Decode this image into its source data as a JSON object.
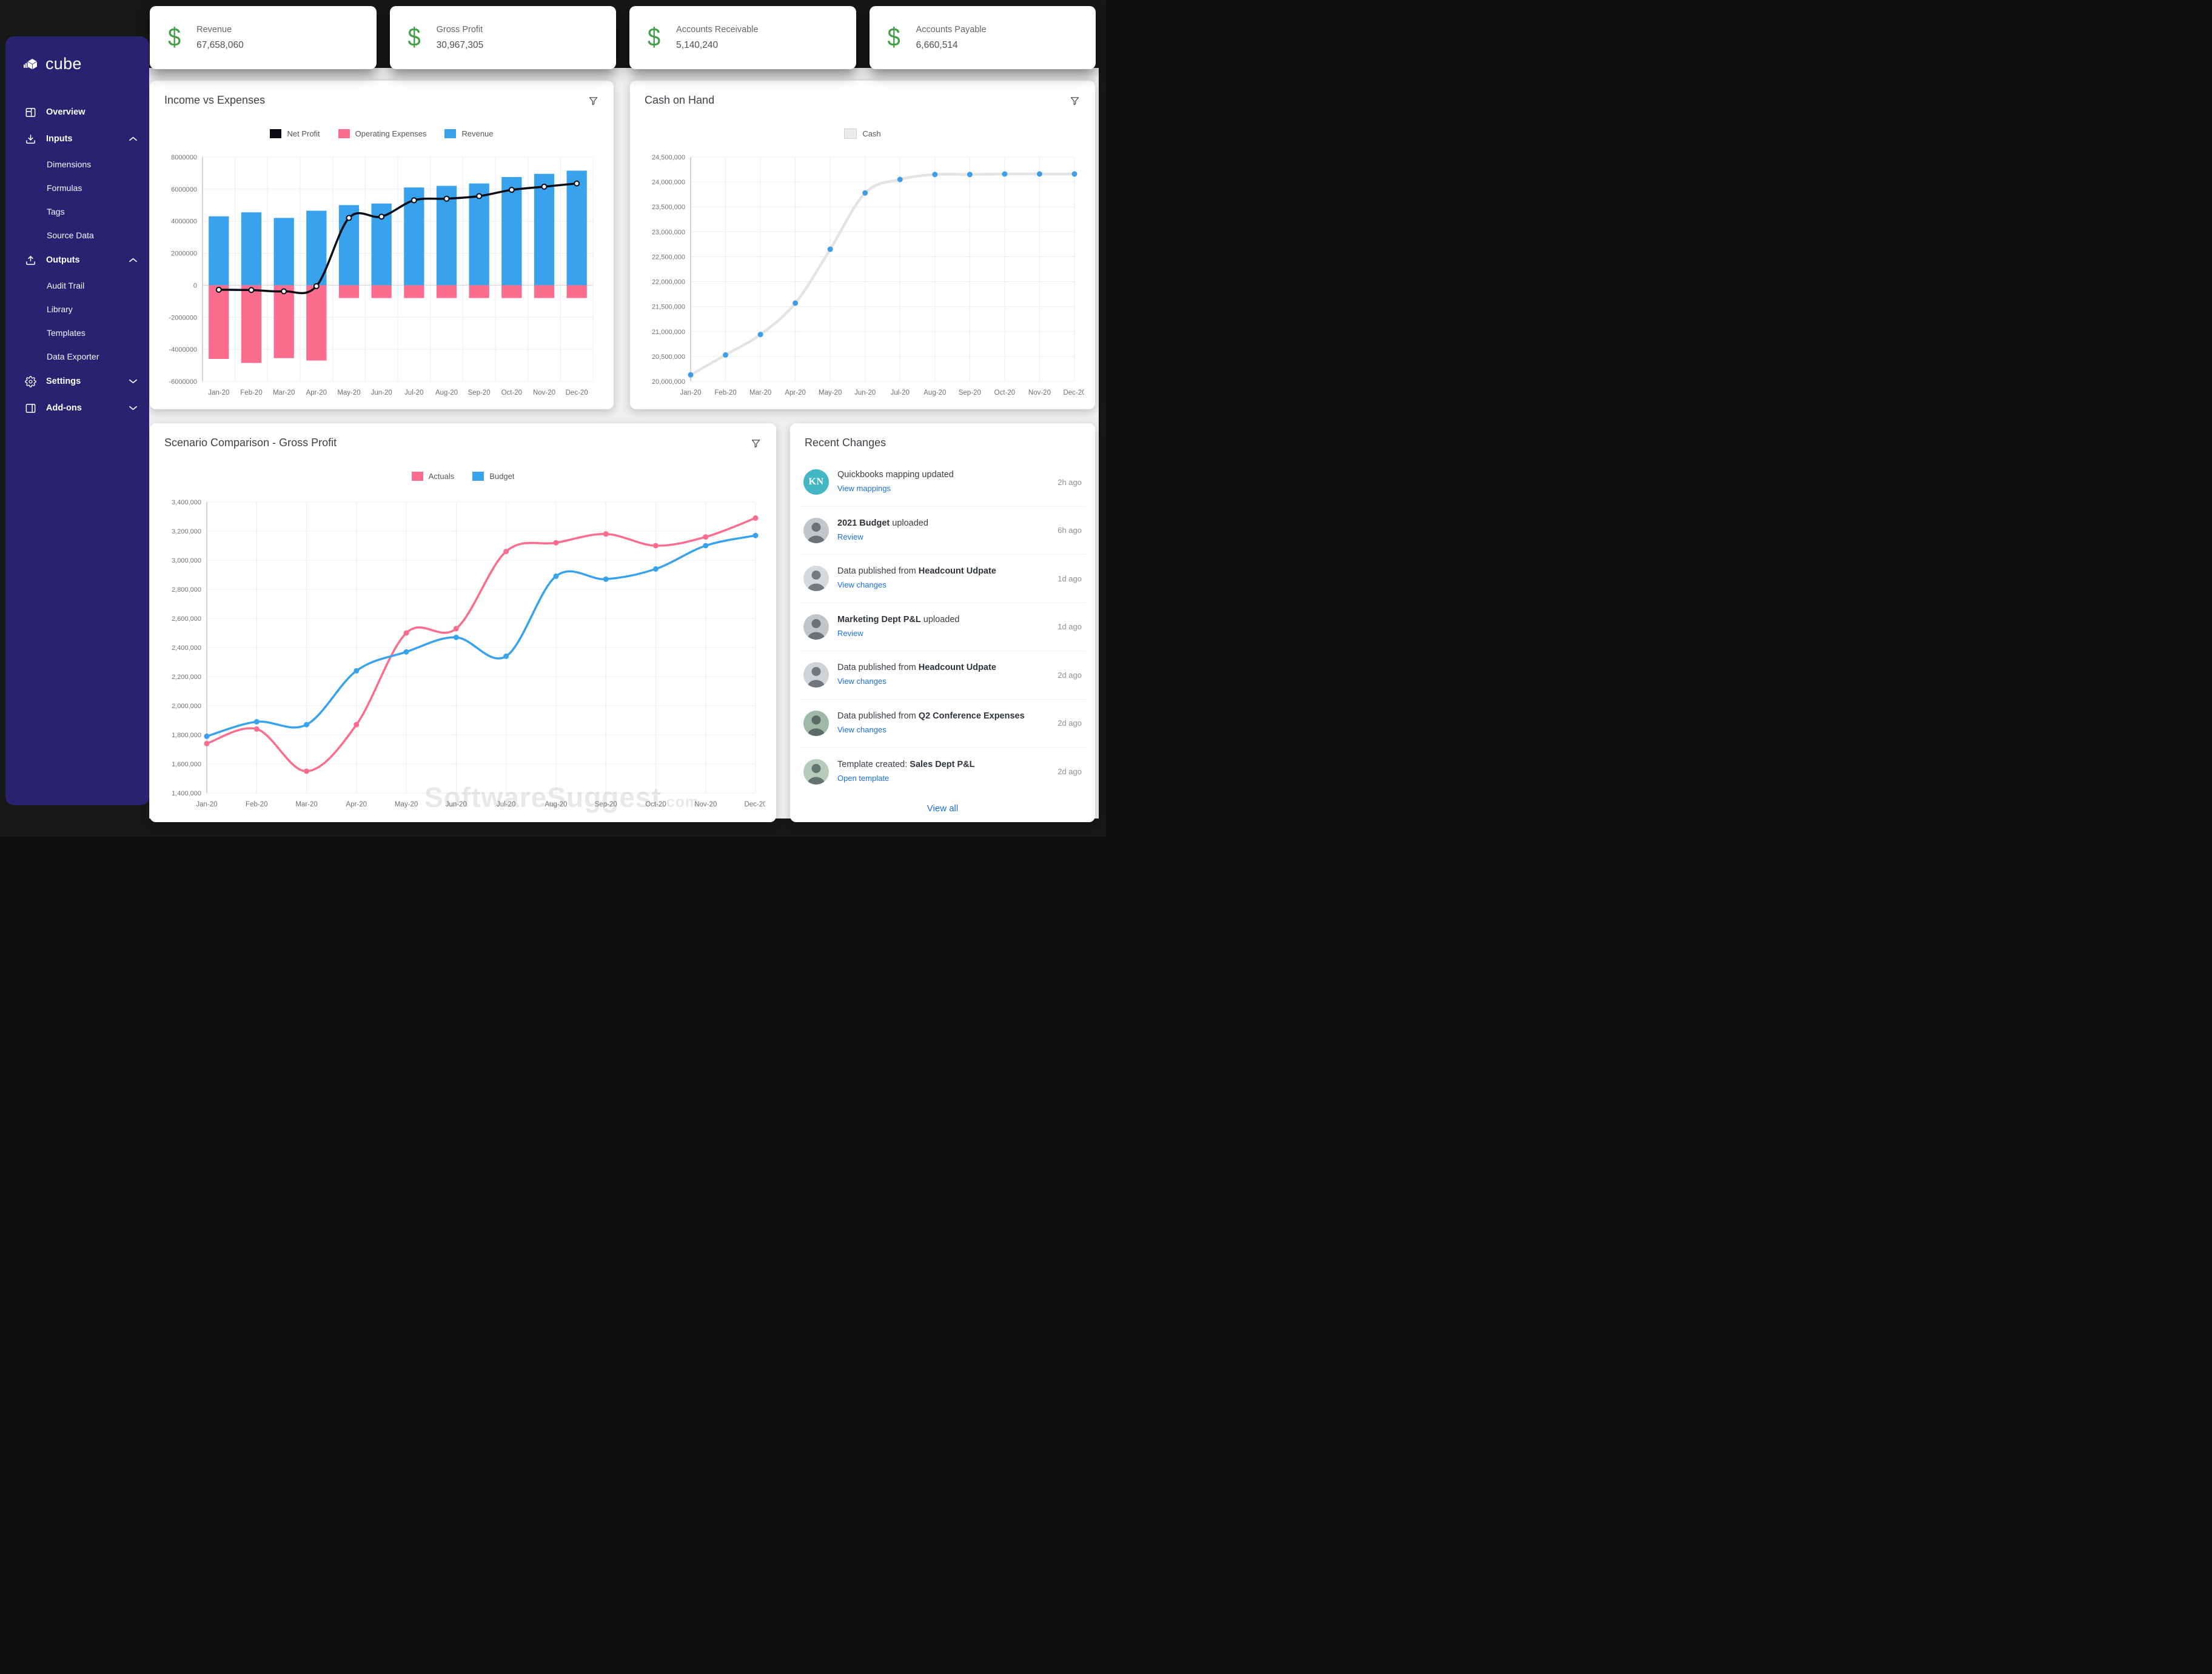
{
  "watermark": {
    "text": "SoftwareSuggest",
    "suffix": ".com"
  },
  "sidebar": {
    "logo_text": "cube",
    "items": [
      {
        "label": "Overview",
        "icon": "overview-icon"
      },
      {
        "label": "Inputs",
        "icon": "inputs-icon",
        "chevron": "up",
        "children": [
          "Dimensions",
          "Formulas",
          "Tags",
          "Source Data"
        ]
      },
      {
        "label": "Outputs",
        "icon": "outputs-icon",
        "chevron": "up",
        "children": [
          "Audit Trail",
          "Library",
          "Templates",
          "Data Exporter"
        ]
      },
      {
        "label": "Settings",
        "icon": "settings-icon",
        "chevron": "down",
        "children": []
      },
      {
        "label": "Add-ons",
        "icon": "addons-icon",
        "chevron": "down",
        "children": []
      }
    ]
  },
  "kpi_icon_color": "#43a047",
  "kpis": [
    {
      "label": "Revenue",
      "value": "67,658,060"
    },
    {
      "label": "Gross Profit",
      "value": "30,967,305"
    },
    {
      "label": "Accounts Receivable",
      "value": "5,140,240"
    },
    {
      "label": "Accounts Payable",
      "value": "6,660,514"
    }
  ],
  "chart_data": [
    {
      "id": "income_expenses",
      "title": "Income vs Expenses",
      "type": "bar+line",
      "categories": [
        "Jan-20",
        "Feb-20",
        "Mar-20",
        "Apr-20",
        "May-20",
        "Jun-20",
        "Jul-20",
        "Aug-20",
        "Sep-20",
        "Oct-20",
        "Nov-20",
        "Dec-20"
      ],
      "ylim": [
        -6000000,
        8000000
      ],
      "ystep": 2000000,
      "yticks": [
        "8000000",
        "6000000",
        "4000000",
        "2000000",
        "0",
        "-2000000",
        "-4000000",
        "-6000000"
      ],
      "legend_position": "top-center",
      "grid": true,
      "legend": [
        {
          "name": "Net Profit",
          "color": "#0c0c16"
        },
        {
          "name": "Operating Expenses",
          "color": "#fb6d8e"
        },
        {
          "name": "Revenue",
          "color": "#38a3ec"
        }
      ],
      "series": [
        {
          "name": "Net Profit",
          "type": "line",
          "color": "#0c0c16",
          "width": 3.5,
          "point": "open",
          "values": [
            -280000,
            -300000,
            -380000,
            -60000,
            4200000,
            4280000,
            5300000,
            5400000,
            5560000,
            5950000,
            6150000,
            6350000
          ]
        },
        {
          "name": "Operating Expenses",
          "type": "bar",
          "color": "#fb6d8e",
          "values": [
            -4600000,
            -4850000,
            -4550000,
            -4700000,
            -800000,
            -800000,
            -800000,
            -800000,
            -800000,
            -800000,
            -800000,
            -800000
          ]
        },
        {
          "name": "Revenue",
          "type": "bar",
          "color": "#38a3ec",
          "values": [
            4300000,
            4550000,
            4200000,
            4650000,
            5000000,
            5100000,
            6100000,
            6200000,
            6350000,
            6750000,
            6950000,
            7150000
          ]
        }
      ]
    },
    {
      "id": "cash_on_hand",
      "title": "Cash on Hand",
      "type": "line",
      "categories": [
        "Jan-20",
        "Feb-20",
        "Mar-20",
        "Apr-20",
        "May-20",
        "Jun-20",
        "Jul-20",
        "Aug-20",
        "Sep-20",
        "Oct-20",
        "Nov-20",
        "Dec-20"
      ],
      "ylim": [
        20000000,
        24500000
      ],
      "ystep": 500000,
      "yticks": [
        "24,500,000",
        "24,000,000",
        "23,500,000",
        "23,000,000",
        "22,500,000",
        "22,000,000",
        "21,500,000",
        "21,000,000",
        "20,500,000",
        "20,000,000"
      ],
      "legend_position": "top-center",
      "grid": true,
      "legend": [
        {
          "name": "Cash",
          "color": "#ebebed",
          "border": "#d2d2d4"
        }
      ],
      "series": [
        {
          "name": "Cash",
          "type": "line",
          "color": "#e4e4e6",
          "width": 4.5,
          "point": "solid",
          "point_color": "#3d9fe8",
          "values": [
            20130000,
            20530000,
            20940000,
            21570000,
            22650000,
            23780000,
            24050000,
            24150000,
            24150000,
            24160000,
            24160000,
            24160000
          ]
        }
      ]
    },
    {
      "id": "scenario_comparison",
      "title": "Scenario Comparison - Gross Profit",
      "type": "line",
      "categories": [
        "Jan-20",
        "Feb-20",
        "Mar-20",
        "Apr-20",
        "May-20",
        "Jun-20",
        "Jul-20",
        "Aug-20",
        "Sep-20",
        "Oct-20",
        "Nov-20",
        "Dec-20"
      ],
      "ylim": [
        1400000,
        3400000
      ],
      "ystep": 200000,
      "yticks": [
        "3,400,000",
        "3,200,000",
        "3,000,000",
        "2,800,000",
        "2,600,000",
        "2,400,000",
        "2,200,000",
        "2,000,000",
        "1,800,000",
        "1,600,000",
        "1,400,000"
      ],
      "legend_position": "top-center",
      "grid": true,
      "legend": [
        {
          "name": "Actuals",
          "color": "#fb6d8e"
        },
        {
          "name": "Budget",
          "color": "#38a3ec"
        }
      ],
      "series": [
        {
          "name": "Actuals",
          "type": "line",
          "color": "#fb6d8e",
          "width": 3.5,
          "point": "solid",
          "values": [
            1740000,
            1840000,
            1550000,
            1870000,
            2500000,
            2530000,
            3060000,
            3120000,
            3180000,
            3100000,
            3160000,
            3290000
          ]
        },
        {
          "name": "Budget",
          "type": "line",
          "color": "#38a3ec",
          "width": 3.5,
          "point": "solid",
          "values": [
            1790000,
            1890000,
            1870000,
            2240000,
            2370000,
            2470000,
            2340000,
            2890000,
            2870000,
            2940000,
            3100000,
            3170000
          ]
        }
      ]
    }
  ],
  "recent": {
    "title": "Recent Changes",
    "view_all": "View all",
    "rows": [
      {
        "avatar": {
          "kind": "initials",
          "text": "KN",
          "bg": "#43b6c3"
        },
        "prefix": "Quickbooks mapping updated",
        "bold": "",
        "suffix": "",
        "action": "View mappings",
        "time": "2h ago"
      },
      {
        "avatar": {
          "kind": "photo",
          "bg": "#c2c6ca"
        },
        "prefix": "",
        "bold": "2021 Budget",
        "suffix": " uploaded",
        "action": "Review",
        "time": "6h ago"
      },
      {
        "avatar": {
          "kind": "photo",
          "bg": "#d6d9dc"
        },
        "prefix": "Data published from ",
        "bold": "Headcount Udpate",
        "suffix": "",
        "action": "View changes",
        "time": "1d ago"
      },
      {
        "avatar": {
          "kind": "photo",
          "bg": "#c2c6ca"
        },
        "prefix": "",
        "bold": "Marketing Dept P&L",
        "suffix": " uploaded",
        "action": "Review",
        "time": "1d ago"
      },
      {
        "avatar": {
          "kind": "photo",
          "bg": "#cfd3d7"
        },
        "prefix": "Data published from ",
        "bold": "Headcount Udpate",
        "suffix": "",
        "action": "View changes",
        "time": "2d ago"
      },
      {
        "avatar": {
          "kind": "photo",
          "bg": "#9fb9a6"
        },
        "prefix": "Data published from ",
        "bold": "Q2 Conference Expenses",
        "suffix": "",
        "action": "View changes",
        "time": "2d ago"
      },
      {
        "avatar": {
          "kind": "photo",
          "bg": "#b7cbba"
        },
        "prefix": "Template created: ",
        "bold": "Sales Dept P&L",
        "suffix": "",
        "action": "Open template",
        "time": "2d ago"
      }
    ]
  }
}
